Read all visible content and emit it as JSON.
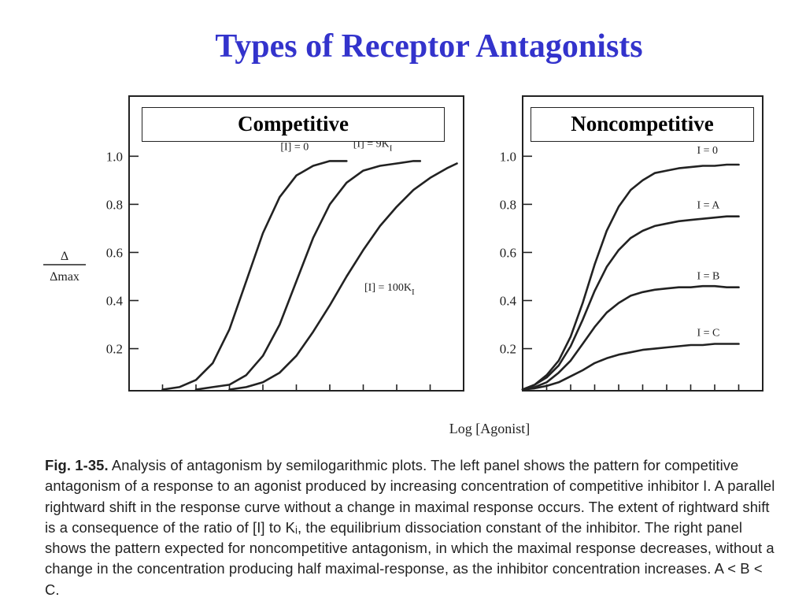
{
  "title": "Types of Receptor Antagonists",
  "ylabel_num": "Δ",
  "ylabel_den": "Δmax",
  "xlabel": "Log [Agonist]",
  "caption": {
    "fig": "Fig. 1-35.",
    "text": "Analysis of antagonism by semilogarithmic plots. The left panel shows the pattern for competitive antagonism of a response to an agonist produced by increasing concentration of competitive inhibitor I. A parallel rightward shift in the response curve without a change in maximal response occurs. The extent of rightward shift is a consequence of the ratio of [I] to Kᵢ, the equilibrium dissociation constant of the inhibitor. The right panel shows the pattern expected for noncompetitive antagonism, in which the maximal response decreases, without a change in the concentration producing half maximal-response, as the inhibitor concentration increases. A < B < C."
  },
  "colors": {
    "title": "#3333cc",
    "ink": "#222222"
  },
  "chart_data": [
    {
      "type": "line",
      "title": "Competitive",
      "xlabel": "Log [Agonist]",
      "ylabel": "Δ/Δmax",
      "yticks": [
        1.0,
        0.8,
        0.6,
        0.4,
        0.2
      ],
      "ytick_labels": [
        "1.0",
        "0.8",
        "0.6",
        "0.4",
        "0.2"
      ],
      "ylim": [
        0.025,
        1.25
      ],
      "xlim": [
        0,
        10
      ],
      "xticks": [
        1,
        2,
        3,
        4,
        5,
        6,
        7,
        8,
        9
      ],
      "grid": false,
      "series": [
        {
          "name": "[I] = 0",
          "x": [
            1.0,
            1.5,
            2.0,
            2.5,
            3.0,
            3.5,
            4.0,
            4.5,
            5.0,
            5.5,
            6.0,
            6.5
          ],
          "y": [
            0.03,
            0.04,
            0.07,
            0.14,
            0.28,
            0.48,
            0.68,
            0.83,
            0.92,
            0.96,
            0.98,
            0.98
          ]
        },
        {
          "name": "[I] = 9K",
          "name_sub": "I",
          "x": [
            2.0,
            2.5,
            3.0,
            3.5,
            4.0,
            4.5,
            5.0,
            5.5,
            6.0,
            6.5,
            7.0,
            7.5,
            8.0,
            8.5,
            8.7
          ],
          "y": [
            0.03,
            0.04,
            0.05,
            0.09,
            0.17,
            0.3,
            0.48,
            0.66,
            0.8,
            0.89,
            0.94,
            0.96,
            0.97,
            0.98,
            0.98
          ]
        },
        {
          "name": "[I] = 100K",
          "name_sub": "I",
          "x": [
            3.0,
            3.5,
            4.0,
            4.5,
            5.0,
            5.5,
            6.0,
            6.5,
            7.0,
            7.5,
            8.0,
            8.5,
            9.0,
            9.5,
            9.8
          ],
          "y": [
            0.03,
            0.04,
            0.06,
            0.1,
            0.17,
            0.27,
            0.38,
            0.5,
            0.61,
            0.71,
            0.79,
            0.86,
            0.91,
            0.95,
            0.97
          ]
        }
      ]
    },
    {
      "type": "line",
      "title": "Noncompetitive",
      "xlabel": "Log [Agonist]",
      "ylabel": "Δ/Δmax",
      "yticks": [
        1.0,
        0.8,
        0.6,
        0.4,
        0.2
      ],
      "ytick_labels": [
        "1.0",
        "0.8",
        "0.6",
        "0.4",
        "0.2"
      ],
      "ylim": [
        0.025,
        1.25
      ],
      "xlim": [
        0,
        10
      ],
      "xticks": [
        1,
        2,
        3,
        4,
        5,
        6,
        7,
        8,
        9
      ],
      "grid": false,
      "series": [
        {
          "name": "I = 0",
          "x": [
            0,
            0.5,
            1,
            1.5,
            2,
            2.5,
            3,
            3.5,
            4,
            4.5,
            5,
            5.5,
            6,
            6.5,
            7,
            7.5,
            8,
            8.5,
            9
          ],
          "y": [
            0.03,
            0.05,
            0.09,
            0.15,
            0.25,
            0.39,
            0.55,
            0.69,
            0.79,
            0.86,
            0.9,
            0.93,
            0.94,
            0.95,
            0.955,
            0.96,
            0.96,
            0.965,
            0.965
          ]
        },
        {
          "name": "I = A",
          "x": [
            0,
            0.5,
            1,
            1.5,
            2,
            2.5,
            3,
            3.5,
            4,
            4.5,
            5,
            5.5,
            6,
            6.5,
            7,
            7.5,
            8,
            8.5,
            9
          ],
          "y": [
            0.03,
            0.05,
            0.08,
            0.13,
            0.21,
            0.32,
            0.44,
            0.54,
            0.61,
            0.66,
            0.69,
            0.71,
            0.72,
            0.73,
            0.735,
            0.74,
            0.745,
            0.75,
            0.75
          ]
        },
        {
          "name": "I = B",
          "x": [
            0,
            0.5,
            1,
            1.5,
            2,
            2.5,
            3,
            3.5,
            4,
            4.5,
            5,
            5.5,
            6,
            6.5,
            7,
            7.5,
            8,
            8.5,
            9
          ],
          "y": [
            0.03,
            0.04,
            0.06,
            0.1,
            0.15,
            0.22,
            0.29,
            0.35,
            0.39,
            0.42,
            0.435,
            0.445,
            0.45,
            0.455,
            0.455,
            0.46,
            0.46,
            0.455,
            0.455
          ]
        },
        {
          "name": "I = C",
          "x": [
            0,
            0.5,
            1,
            1.5,
            2,
            2.5,
            3,
            3.5,
            4,
            4.5,
            5,
            5.5,
            6,
            6.5,
            7,
            7.5,
            8,
            8.5,
            9
          ],
          "y": [
            0.03,
            0.035,
            0.045,
            0.06,
            0.085,
            0.11,
            0.14,
            0.16,
            0.175,
            0.185,
            0.195,
            0.2,
            0.205,
            0.21,
            0.215,
            0.215,
            0.22,
            0.22,
            0.22
          ]
        }
      ]
    }
  ]
}
